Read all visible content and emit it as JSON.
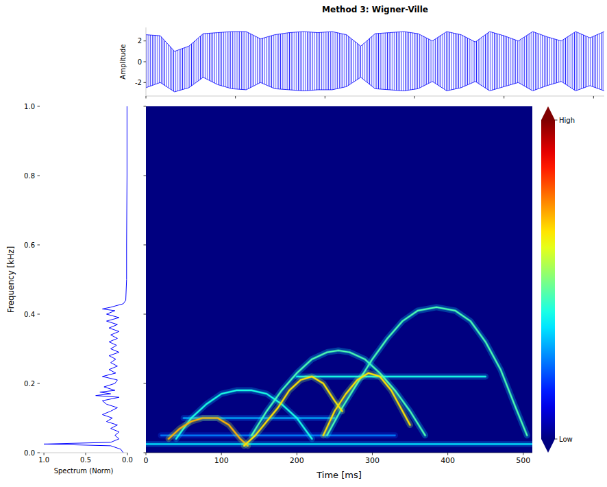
{
  "chart_data": [
    {
      "type": "area",
      "title": "Method 3: Wigner-Ville",
      "ylabel": "Amplitude",
      "color": "blue",
      "x": [
        0,
        16,
        32,
        48,
        64,
        80,
        96,
        112,
        128,
        144,
        160,
        176,
        192,
        208,
        224,
        240,
        256,
        272,
        288,
        304,
        320,
        336,
        352,
        368,
        384,
        400,
        416,
        432,
        448,
        464,
        480,
        496,
        512
      ],
      "upper": [
        2.6,
        2.5,
        1.0,
        1.5,
        2.7,
        2.8,
        2.9,
        2.9,
        2.2,
        2.6,
        2.8,
        2.9,
        2.8,
        2.9,
        2.6,
        1.5,
        2.7,
        2.8,
        2.9,
        2.7,
        2.0,
        2.9,
        2.6,
        1.9,
        2.9,
        2.5,
        2.0,
        2.9,
        2.4,
        2.0,
        2.9,
        2.3,
        2.9
      ],
      "lower": [
        -2.5,
        -2.0,
        -2.9,
        -2.5,
        -1.5,
        -2.2,
        -2.6,
        -2.7,
        -2.0,
        -2.6,
        -2.7,
        -2.8,
        -2.7,
        -2.7,
        -2.4,
        -1.5,
        -2.6,
        -2.7,
        -2.8,
        -2.6,
        -1.9,
        -2.8,
        -2.5,
        -1.9,
        -2.8,
        -2.4,
        -2.0,
        -2.8,
        -2.3,
        -1.9,
        -2.8,
        -2.3,
        -2.8
      ],
      "xlim": [
        0,
        512
      ],
      "xticks": [
        0,
        100,
        200,
        300,
        400,
        500
      ],
      "ylim": [
        -3.3,
        3.3
      ],
      "yticks": [
        -2,
        0,
        2
      ],
      "tick_labels": "y"
    },
    {
      "type": "line",
      "xlabel": "Spectrum (Norm)",
      "ylabel": "Frequency [kHz]",
      "color": "blue",
      "frequency": [
        0,
        0.01,
        0.02,
        0.025,
        0.03,
        0.04,
        0.05,
        0.06,
        0.07,
        0.08,
        0.09,
        0.1,
        0.11,
        0.12,
        0.13,
        0.14,
        0.15,
        0.16,
        0.165,
        0.17,
        0.175,
        0.18,
        0.19,
        0.2,
        0.21,
        0.22,
        0.23,
        0.24,
        0.25,
        0.26,
        0.27,
        0.28,
        0.29,
        0.3,
        0.31,
        0.32,
        0.33,
        0.34,
        0.35,
        0.36,
        0.37,
        0.38,
        0.39,
        0.4,
        0.41,
        0.415,
        0.42,
        0.43,
        0.44,
        0.5,
        0.6,
        0.8,
        1.0
      ],
      "values": [
        0.05,
        0.08,
        0.2,
        1.0,
        0.2,
        0.1,
        0.15,
        0.1,
        0.2,
        0.12,
        0.25,
        0.18,
        0.3,
        0.2,
        0.12,
        0.25,
        0.3,
        0.1,
        0.38,
        0.2,
        0.33,
        0.15,
        0.28,
        0.15,
        0.12,
        0.3,
        0.14,
        0.22,
        0.12,
        0.2,
        0.14,
        0.22,
        0.1,
        0.2,
        0.13,
        0.22,
        0.12,
        0.2,
        0.1,
        0.22,
        0.12,
        0.25,
        0.1,
        0.25,
        0.15,
        0.3,
        0.2,
        0.05,
        0.02,
        0.01,
        0.01,
        0.005,
        0.005
      ],
      "xlim": [
        1.05,
        0.0
      ],
      "xticks": [
        {
          "value": 1.0,
          "label": "1.0"
        },
        0.5,
        {
          "value": 0.0,
          "label": "0.0"
        }
      ],
      "ylim": [
        0,
        1
      ],
      "yticks": [
        {
          "value": 0,
          "label": "0.0"
        },
        0.2,
        0.4,
        0.6,
        0.8,
        {
          "value": 1,
          "label": "1.0"
        }
      ]
    },
    {
      "type": "heatmap",
      "xlabel": "Time [ms]",
      "xlim": [
        0,
        512
      ],
      "xticks": [
        0,
        100,
        200,
        300,
        400,
        500
      ],
      "ylim": [
        0,
        1
      ],
      "yticks": [
        0,
        0.2,
        0.4,
        0.6,
        0.8,
        1
      ],
      "tick_labels": "x",
      "colorbar": {
        "range": [
          0,
          1
        ],
        "ticks": [
          {
            "value": 0,
            "label": "Low"
          },
          {
            "value": 1,
            "label": "High"
          }
        ]
      },
      "ridges": [
        {
          "level": 0.25,
          "x": [
            20,
            330
          ],
          "values": [
            0.05,
            0.05
          ]
        },
        {
          "level": 0.35,
          "x": [
            0,
            512
          ],
          "values": [
            0.025,
            0.025
          ]
        },
        {
          "level": 0.3,
          "x": [
            50,
            250
          ],
          "values": [
            0.1,
            0.1
          ]
        },
        {
          "level": 0.4,
          "x": [
            200,
            450
          ],
          "values": [
            0.22,
            0.22
          ]
        },
        {
          "level": 0.4,
          "x": [
            40,
            60,
            80,
            100,
            120,
            130,
            140,
            160,
            180,
            200,
            220
          ],
          "values": [
            0.04,
            0.1,
            0.14,
            0.17,
            0.18,
            0.18,
            0.18,
            0.17,
            0.14,
            0.1,
            0.04
          ]
        },
        {
          "level": 0.45,
          "x": [
            140,
            160,
            180,
            200,
            220,
            240,
            255,
            270,
            290,
            310,
            330,
            350,
            370
          ],
          "values": [
            0.05,
            0.12,
            0.18,
            0.23,
            0.27,
            0.29,
            0.295,
            0.29,
            0.27,
            0.23,
            0.18,
            0.12,
            0.05
          ]
        },
        {
          "level": 0.45,
          "x": [
            240,
            260,
            280,
            300,
            320,
            340,
            360,
            385,
            410,
            430,
            450,
            470,
            490,
            505
          ],
          "values": [
            0.05,
            0.13,
            0.2,
            0.27,
            0.33,
            0.38,
            0.41,
            0.42,
            0.41,
            0.38,
            0.32,
            0.24,
            0.13,
            0.05
          ]
        },
        {
          "level": 0.7,
          "x": [
            30,
            45,
            60,
            75,
            85,
            95,
            110,
            125,
            135
          ],
          "values": [
            0.04,
            0.07,
            0.09,
            0.1,
            0.1,
            0.1,
            0.08,
            0.04,
            0.02
          ]
        },
        {
          "level": 0.65,
          "x": [
            130,
            145,
            160,
            175,
            190,
            205,
            220,
            235,
            250,
            260
          ],
          "values": [
            0.02,
            0.05,
            0.09,
            0.13,
            0.18,
            0.21,
            0.22,
            0.2,
            0.15,
            0.12
          ]
        },
        {
          "level": 0.65,
          "x": [
            235,
            250,
            265,
            280,
            295,
            310,
            325,
            340,
            350
          ],
          "values": [
            0.05,
            0.12,
            0.17,
            0.21,
            0.23,
            0.22,
            0.18,
            0.12,
            0.08
          ]
        }
      ]
    }
  ]
}
